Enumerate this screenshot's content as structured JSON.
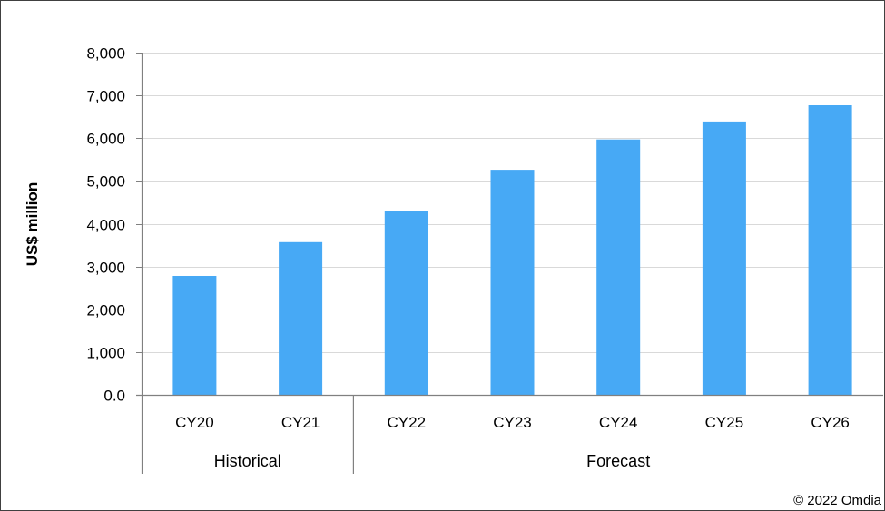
{
  "chart_data": {
    "type": "bar",
    "title": "",
    "xlabel": "",
    "ylabel": "US$ million",
    "categories": [
      "CY20",
      "CY21",
      "CY22",
      "CY23",
      "CY24",
      "CY25",
      "CY26"
    ],
    "values": [
      2780,
      3570,
      4290,
      5260,
      5970,
      6390,
      6770
    ],
    "ylim": [
      0,
      8000
    ],
    "yticks": [
      0,
      1000,
      2000,
      3000,
      4000,
      5000,
      6000,
      7000,
      8000
    ],
    "ytick_labels": [
      "0.0",
      "1,000",
      "2,000",
      "3,000",
      "4,000",
      "5,000",
      "6,000",
      "7,000",
      "8,000"
    ],
    "groups": [
      {
        "label": "Historical",
        "categories": [
          "CY20",
          "CY21"
        ]
      },
      {
        "label": "Forecast",
        "categories": [
          "CY22",
          "CY23",
          "CY24",
          "CY25",
          "CY26"
        ]
      }
    ],
    "grid": true,
    "legend": "none",
    "bar_color": "#47A9F5",
    "grid_color": "#D9D9D9",
    "axis_color": "#808080"
  },
  "source_note": "© 2022 Omdia"
}
